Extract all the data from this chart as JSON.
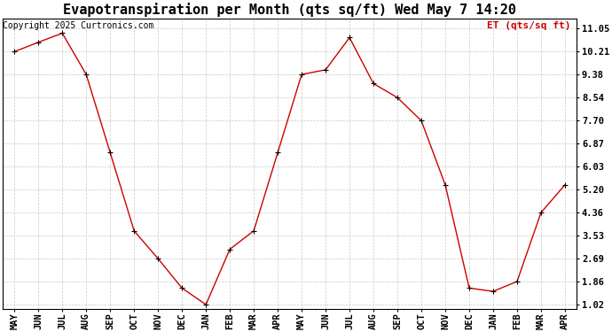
{
  "title": "Evapotranspiration per Month (qts sq/ft) Wed May 7 14:20",
  "ylabel_text": "ET (qts/sq ft)",
  "copyright": "Copyright 2025 Curtronics.com",
  "ylabel_color": "#cc0000",
  "line_color": "#cc0000",
  "marker_color": "#000000",
  "background_color": "#ffffff",
  "grid_color": "#bbbbbb",
  "months": [
    "MAY",
    "JUN",
    "JUL",
    "AUG",
    "SEP",
    "OCT",
    "NOV",
    "DEC",
    "JAN",
    "FEB",
    "MAR",
    "APR",
    "MAY",
    "JUN",
    "JUL",
    "AUG",
    "SEP",
    "OCT",
    "NOV",
    "DEC",
    "JAN",
    "FEB",
    "MAR",
    "APR"
  ],
  "values": [
    10.21,
    10.55,
    10.88,
    9.38,
    6.54,
    3.7,
    2.69,
    1.62,
    1.02,
    3.03,
    3.7,
    6.54,
    9.38,
    9.55,
    10.72,
    9.05,
    8.54,
    7.7,
    5.37,
    1.62,
    1.5,
    1.86,
    4.36,
    5.37
  ],
  "yticks": [
    1.02,
    1.86,
    2.69,
    3.53,
    4.36,
    5.2,
    6.03,
    6.87,
    7.7,
    8.54,
    9.38,
    10.21,
    11.05
  ],
  "ylim": [
    0.85,
    11.4
  ],
  "title_fontsize": 11,
  "tick_fontsize": 7.5,
  "copyright_fontsize": 7,
  "ylabel_fontsize": 8
}
